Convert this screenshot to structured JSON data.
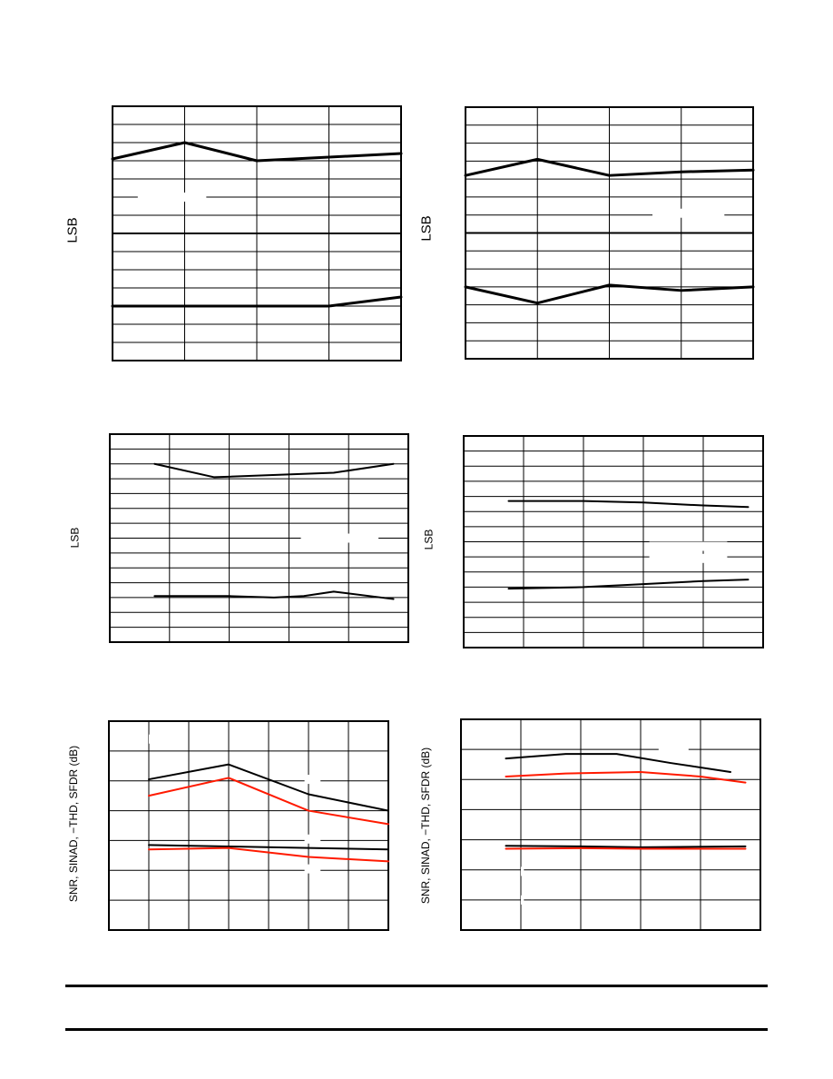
{
  "colors": {
    "black": "#000000",
    "red": "#ff1a00"
  },
  "chart_data": [
    {
      "type": "line",
      "ylabel": "LSB",
      "grid": true,
      "xlim": [
        0,
        4
      ],
      "ylim": [
        0,
        14
      ],
      "masks": [
        {
          "x0": 0.35,
          "x1": 1.3,
          "y": 9.0
        }
      ],
      "series": [
        {
          "color": "black",
          "x": [
            0,
            1,
            2,
            3,
            4
          ],
          "y": [
            11.1,
            12.0,
            11.0,
            11.2,
            11.4
          ]
        },
        {
          "color": "black",
          "x": [
            0,
            1,
            2,
            3,
            4
          ],
          "y": [
            3.0,
            3.0,
            3.0,
            3.0,
            3.5
          ]
        }
      ]
    },
    {
      "type": "line",
      "ylabel": "LSB",
      "grid": true,
      "xlim": [
        0,
        4
      ],
      "ylim": [
        0,
        14
      ],
      "masks": [
        {
          "x0": 2.6,
          "x1": 3.6,
          "y": 8.1
        }
      ],
      "series": [
        {
          "color": "black",
          "x": [
            0,
            1,
            2,
            3,
            4
          ],
          "y": [
            10.2,
            11.1,
            10.2,
            10.4,
            10.5
          ]
        },
        {
          "color": "black",
          "x": [
            0,
            1,
            2,
            3,
            4
          ],
          "y": [
            4.0,
            3.1,
            4.1,
            3.8,
            4.0
          ]
        }
      ]
    },
    {
      "type": "line",
      "ylabel": "LSB",
      "grid": true,
      "xlim": [
        0,
        5
      ],
      "ylim": [
        0,
        14
      ],
      "masks": [
        {
          "x0": 3.2,
          "x1": 4.5,
          "y": 7.0
        }
      ],
      "series": [
        {
          "color": "black",
          "x": [
            0.75,
            1.75,
            3.75,
            4.75
          ],
          "y": [
            12.0,
            11.1,
            11.4,
            12.0
          ]
        },
        {
          "color": "black",
          "x": [
            0.75,
            2.0,
            2.75,
            3.25,
            3.75,
            4.75
          ],
          "y": [
            3.1,
            3.1,
            3.0,
            3.1,
            3.4,
            2.9
          ]
        }
      ]
    },
    {
      "type": "line",
      "ylabel": "LSB",
      "grid": true,
      "xlim": [
        0,
        5
      ],
      "ylim": [
        0,
        14
      ],
      "masks": [
        {
          "x0": 3.1,
          "x1": 4.4,
          "y": 6.7
        },
        {
          "x0": 3.1,
          "x1": 4.4,
          "y": 5.9
        }
      ],
      "series": [
        {
          "color": "black",
          "x": [
            0.75,
            2.0,
            3.0,
            4.0,
            4.75
          ],
          "y": [
            9.7,
            9.7,
            9.6,
            9.4,
            9.3
          ]
        },
        {
          "color": "black",
          "x": [
            0.75,
            2.0,
            3.0,
            4.0,
            4.75
          ],
          "y": [
            3.9,
            4.0,
            4.2,
            4.4,
            4.5
          ]
        }
      ]
    },
    {
      "type": "line",
      "ylabel": "SNR, SINAD, −THD, SFDR (dB)",
      "grid": true,
      "xlim": [
        0,
        7
      ],
      "ylim": [
        0,
        7
      ],
      "masks": [
        {
          "x0": 1.0,
          "x1": 1.1,
          "y": 6.4
        },
        {
          "x0": 4.9,
          "x1": 5.3,
          "y": 5.05
        },
        {
          "x0": 4.9,
          "x1": 5.3,
          "y": 3.05
        },
        {
          "x0": 4.9,
          "x1": 5.3,
          "y": 2.05
        }
      ],
      "series": [
        {
          "color": "black",
          "x": [
            1.0,
            3.0,
            5.0,
            7.0
          ],
          "y": [
            5.05,
            5.55,
            4.55,
            4.0
          ]
        },
        {
          "color": "red",
          "x": [
            1.0,
            3.0,
            5.0,
            7.0
          ],
          "y": [
            4.5,
            5.1,
            4.0,
            3.55
          ]
        },
        {
          "color": "black",
          "x": [
            1.0,
            3.0,
            5.0,
            7.0
          ],
          "y": [
            2.85,
            2.8,
            2.75,
            2.7
          ]
        },
        {
          "color": "red",
          "x": [
            1.0,
            3.0,
            5.0,
            7.0
          ],
          "y": [
            2.7,
            2.75,
            2.45,
            2.3
          ]
        }
      ]
    },
    {
      "type": "line",
      "ylabel": "SNR, SINAD, −THD, SFDR (dB)",
      "grid": true,
      "xlim": [
        0,
        5
      ],
      "ylim": [
        0,
        7
      ],
      "masks": [
        {
          "x0": 3.3,
          "x1": 3.8,
          "y": 6.0
        },
        {
          "x0": 1.0,
          "x1": 1.05,
          "y": 1.95
        },
        {
          "x0": 1.0,
          "x1": 1.05,
          "y": 1.0
        }
      ],
      "series": [
        {
          "color": "black",
          "x": [
            0.75,
            1.75,
            2.6,
            3.5,
            4.5
          ],
          "y": [
            5.7,
            5.85,
            5.85,
            5.55,
            5.25
          ]
        },
        {
          "color": "red",
          "x": [
            0.75,
            1.75,
            3.0,
            4.0,
            4.75
          ],
          "y": [
            5.1,
            5.2,
            5.25,
            5.1,
            4.9
          ]
        },
        {
          "color": "black",
          "x": [
            0.75,
            2.0,
            3.0,
            4.75
          ],
          "y": [
            2.8,
            2.78,
            2.75,
            2.78
          ]
        },
        {
          "color": "red",
          "x": [
            0.75,
            2.0,
            3.0,
            4.75
          ],
          "y": [
            2.7,
            2.72,
            2.7,
            2.7
          ]
        }
      ]
    }
  ]
}
